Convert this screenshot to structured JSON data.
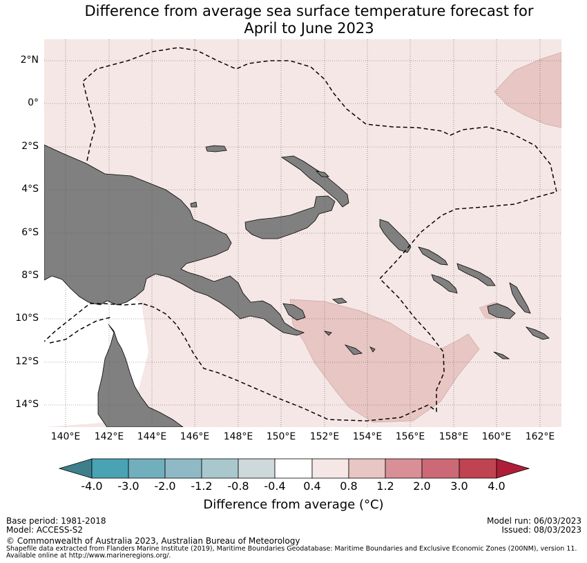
{
  "title": {
    "line1": "Difference from average sea surface temperature forecast for",
    "line2": "April to June 2023"
  },
  "axes": {
    "lat_ticks": [
      "2°N",
      "0°",
      "2°S",
      "4°S",
      "6°S",
      "8°S",
      "10°S",
      "12°S",
      "14°S"
    ],
    "lon_ticks": [
      "140°E",
      "142°E",
      "144°E",
      "146°E",
      "148°E",
      "150°E",
      "152°E",
      "154°E",
      "156°E",
      "158°E",
      "160°E",
      "162°E"
    ],
    "lat_range": [
      -15,
      3
    ],
    "lon_range": [
      139,
      163
    ],
    "grid": true
  },
  "colorbar": {
    "labels": [
      "-4.0",
      "-3.0",
      "-2.0",
      "-1.2",
      "-0.8",
      "-0.4",
      "0.4",
      "0.8",
      "1.2",
      "2.0",
      "3.0",
      "4.0"
    ],
    "colors": [
      "#3e7f8c",
      "#4aa3b3",
      "#72afbd",
      "#8fbac5",
      "#a9c8ce",
      "#ced9dc",
      "#ffffff",
      "#f5e7e5",
      "#e8c6c3",
      "#d88f95",
      "#cb6a76",
      "#c04352",
      "#ae1e39"
    ],
    "title": "Difference from average (°C)"
  },
  "legend_values": {
    "background_anomaly": "0.4 to 0.8",
    "warm_patch_anomaly": "0.8 to 1.2"
  },
  "colors": {
    "land": "#808080",
    "ocean_background": "#f5e7e5",
    "warm_patch": "#e8c6c3",
    "boundary_line": "#000000"
  },
  "footer": {
    "base_period": "Base period: 1981-2018",
    "model": "Model: ACCESS-S2",
    "model_run": "Model run: 06/03/2023",
    "issued": "Issued: 08/03/2023",
    "copyright": "© Commonwealth of Australia 2023, Australian Bureau of Meteorology",
    "source_line1": "Shapefile data extracted from Flanders Marine Institute (2019), Maritime Boundaries Geodatabase: Maritime Boundaries and Exclusive Economic Zones (200NM), version 11.",
    "source_line2": "Available online at http://www.marineregions.org/."
  }
}
